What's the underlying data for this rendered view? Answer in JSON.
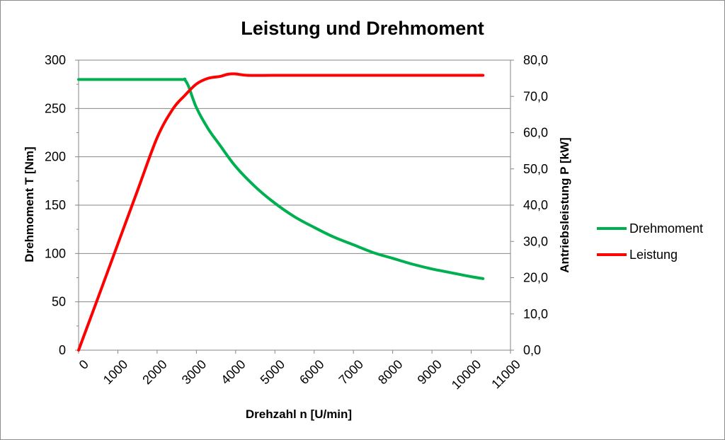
{
  "chart_data": {
    "type": "line",
    "title": "Leistung und Drehmoment",
    "xlabel": "Drehzahl n [U/min]",
    "ylabel": "Drehmoment T [Nm]",
    "y2label": "Antriebsleistung P [kW]",
    "xlim": [
      0,
      11000
    ],
    "ylim": [
      0,
      300
    ],
    "y2lim": [
      0,
      80
    ],
    "x_ticks": [
      "0",
      "1000",
      "2000",
      "3000",
      "4000",
      "5000",
      "6000",
      "7000",
      "8000",
      "9000",
      "10000",
      "11000"
    ],
    "y_ticks": [
      "0",
      "50",
      "100",
      "150",
      "200",
      "250",
      "300"
    ],
    "y2_ticks": [
      "0,0",
      "10,0",
      "20,0",
      "30,0",
      "40,0",
      "50,0",
      "60,0",
      "70,0",
      "80,0"
    ],
    "grid": true,
    "legend_position": "right",
    "series": [
      {
        "name": "Drehmoment",
        "axis": "left",
        "color": "#00b050",
        "x": [
          0,
          1000,
          2000,
          2650,
          2700,
          2800,
          3000,
          3300,
          3600,
          4000,
          4500,
          5000,
          5500,
          6000,
          6500,
          7000,
          7500,
          8000,
          8500,
          9000,
          9500,
          10000,
          10300
        ],
        "y": [
          280,
          280,
          280,
          280,
          280,
          273,
          251,
          229,
          212,
          190,
          169,
          152,
          138,
          127,
          117,
          109,
          101,
          95,
          89,
          84,
          80,
          76,
          74
        ]
      },
      {
        "name": "Leistung",
        "axis": "right",
        "color": "#ff0000",
        "x": [
          0,
          500,
          1000,
          1500,
          2000,
          2400,
          2700,
          3000,
          3300,
          3600,
          3800,
          4000,
          4300,
          5000,
          6000,
          7000,
          8000,
          9000,
          10000,
          10300
        ],
        "y": [
          0,
          14.6,
          29.3,
          44.0,
          58.6,
          66.5,
          70.2,
          73.4,
          75.0,
          75.5,
          76.1,
          76.2,
          75.8,
          75.8,
          75.8,
          75.8,
          75.8,
          75.8,
          75.8,
          75.8
        ]
      }
    ]
  }
}
